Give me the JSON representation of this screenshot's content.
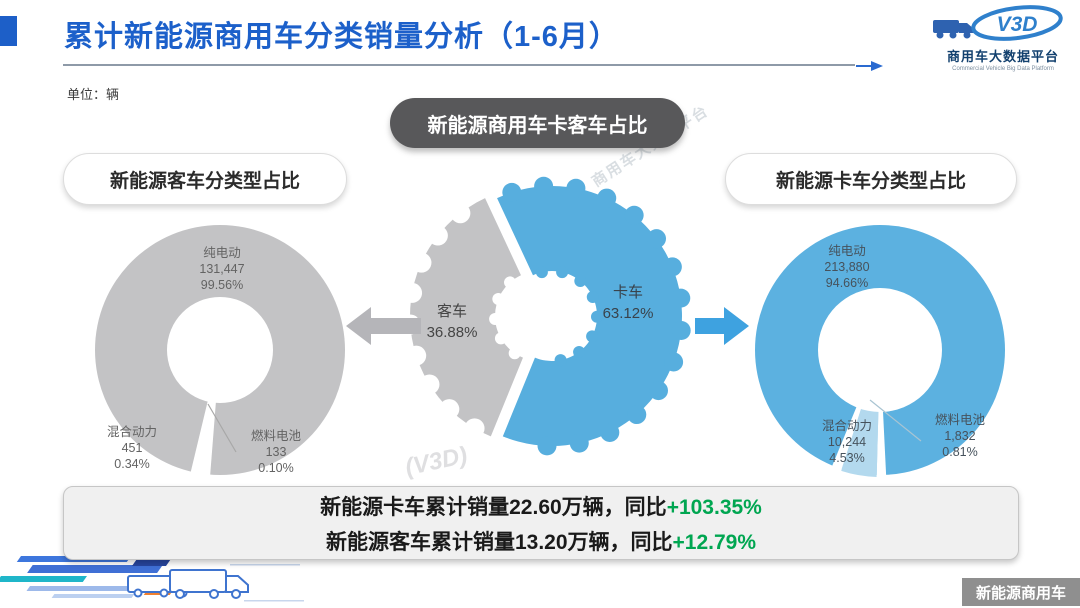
{
  "page": {
    "title": "累计新能源商用车分类销量分析（1-6月）",
    "unit_label": "单位：辆",
    "center_badge": "新能源商用车卡客车占比",
    "footer_tag": "新能源商用车",
    "watermark_text": "商用车大数据平台",
    "watermark_logo": "(V3D)"
  },
  "logo": {
    "mark": "V3D",
    "name_cn": "商用车大数据平台",
    "name_en": "Commercial Vehicle Big Data Platform"
  },
  "panels": {
    "bus_title": "新能源客车分类型占比",
    "truck_title": "新能源卡车分类型占比"
  },
  "summary": {
    "truck_prefix": "新能源卡车累计销量22.60万辆，同比",
    "truck_delta": "+103.35%",
    "bus_prefix": "新能源客车累计销量13.20万辆，同比",
    "bus_delta": "+12.79%"
  },
  "colors": {
    "title_blue": "#1c60ca",
    "truck_blue": "#57aede",
    "bus_gray": "#c3c3c5",
    "hybrid_light_blue": "#b3d9ee",
    "delta_green": "#00a651",
    "badge_dark": "#58585a",
    "tag_gray": "#8f8f8f"
  },
  "chart_data": [
    {
      "id": "bus-truck-share",
      "type": "pie",
      "shape": "gear-donut",
      "title": "新能源商用车卡客车占比",
      "categories": [
        "客车",
        "卡车"
      ],
      "values": [
        36.88,
        63.12
      ],
      "pct_labels": [
        "36.88%",
        "63.12%"
      ],
      "colors": [
        "#c3c3c5",
        "#57aede"
      ]
    },
    {
      "id": "bus-by-type",
      "type": "pie",
      "shape": "donut",
      "title": "新能源客车分类型占比",
      "categories": [
        "纯电动",
        "混合动力",
        "燃料电池"
      ],
      "values": [
        131447,
        451,
        133
      ],
      "value_labels": [
        "131,447",
        "451",
        "133"
      ],
      "pct_labels": [
        "99.56%",
        "0.34%",
        "0.10%"
      ],
      "color": "#c3c3c5"
    },
    {
      "id": "truck-by-type",
      "type": "pie",
      "shape": "donut",
      "title": "新能源卡车分类型占比",
      "categories": [
        "纯电动",
        "混合动力",
        "燃料电池"
      ],
      "values": [
        213880,
        10244,
        1832
      ],
      "value_labels": [
        "213,880",
        "10,244",
        "1,832"
      ],
      "pct_labels": [
        "94.66%",
        "4.53%",
        "0.81%"
      ],
      "color": "#5cb1e0"
    }
  ]
}
